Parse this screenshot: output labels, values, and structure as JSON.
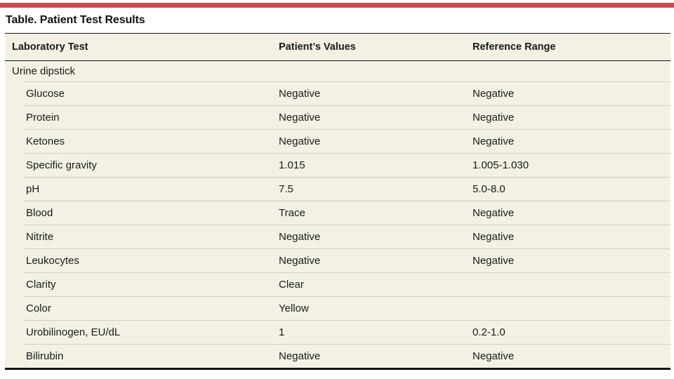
{
  "meta": {
    "accent_red": "#cf4a50",
    "table_background": "#f2f1e4",
    "separator_color": "#cfcec0"
  },
  "title": "Table. Patient Test Results",
  "table": {
    "columns": [
      "Laboratory Test",
      "Patient’s Values",
      "Reference Range"
    ],
    "rows": [
      {
        "test": "Urine dipstick",
        "value": "",
        "range": "",
        "type": "section"
      },
      {
        "test": "Glucose",
        "value": "Negative",
        "range": "Negative"
      },
      {
        "test": "Protein",
        "value": "Negative",
        "range": "Negative"
      },
      {
        "test": "Ketones",
        "value": "Negative",
        "range": "Negative"
      },
      {
        "test": "Specific gravity",
        "value": "1.015",
        "range": "1.005-1.030"
      },
      {
        "test": "pH",
        "value": "7.5",
        "range": "5.0-8.0"
      },
      {
        "test": "Blood",
        "value": "Trace",
        "range": "Negative"
      },
      {
        "test": "Nitrite",
        "value": "Negative",
        "range": "Negative"
      },
      {
        "test": "Leukocytes",
        "value": "Negative",
        "range": "Negative"
      },
      {
        "test": "Clarity",
        "value": "Clear",
        "range": ""
      },
      {
        "test": "Color",
        "value": "Yellow",
        "range": ""
      },
      {
        "test": "Urobilinogen, EU/dL",
        "value": "1",
        "range": "0.2-1.0"
      },
      {
        "test": "Bilirubin",
        "value": "Negative",
        "range": "Negative"
      }
    ]
  }
}
